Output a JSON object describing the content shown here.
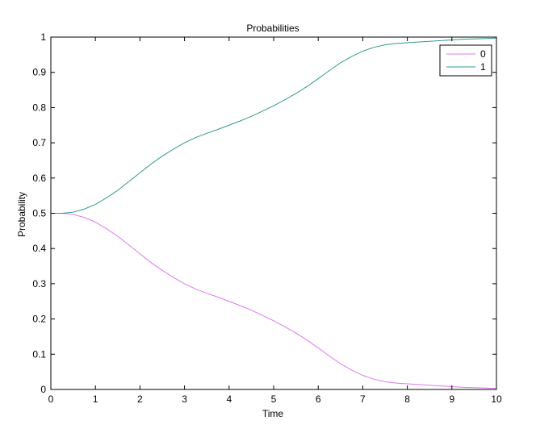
{
  "chart_data": {
    "type": "line",
    "title": "Probabilities",
    "xlabel": "Time",
    "ylabel": "Probability",
    "xlim": [
      0,
      10
    ],
    "ylim": [
      0,
      1
    ],
    "xticks": [
      0,
      1,
      2,
      3,
      4,
      5,
      6,
      7,
      8,
      9,
      10
    ],
    "xtick_labels": [
      "0",
      "1",
      "2",
      "3",
      "4",
      "5",
      "6",
      "7",
      "8",
      "9",
      "10"
    ],
    "yticks": [
      0,
      0.1,
      0.2,
      0.3,
      0.4,
      0.5,
      0.6,
      0.7,
      0.8,
      0.9,
      1
    ],
    "ytick_labels": [
      "0",
      "0.1",
      "0.2",
      "0.3",
      "0.4",
      "0.5",
      "0.6",
      "0.7",
      "0.8",
      "0.9",
      "1"
    ],
    "grid": false,
    "legend_position": "top-right",
    "x": [
      0,
      0.25,
      0.5,
      0.75,
      1.0,
      1.25,
      1.5,
      1.75,
      2.0,
      2.25,
      2.5,
      2.75,
      3.0,
      3.25,
      3.5,
      3.75,
      4.0,
      4.25,
      4.5,
      4.75,
      5.0,
      5.25,
      5.5,
      5.75,
      6.0,
      6.25,
      6.5,
      6.75,
      7.0,
      7.25,
      7.5,
      7.75,
      8.0,
      8.25,
      8.5,
      8.75,
      9.0,
      9.25,
      9.5,
      9.75,
      10.0
    ],
    "series": [
      {
        "name": "0",
        "color": "#dd77ee",
        "values": [
          0.5,
          0.5,
          0.497,
          0.488,
          0.475,
          0.456,
          0.435,
          0.41,
          0.385,
          0.36,
          0.338,
          0.318,
          0.3,
          0.285,
          0.273,
          0.262,
          0.25,
          0.238,
          0.225,
          0.21,
          0.195,
          0.178,
          0.16,
          0.14,
          0.118,
          0.095,
          0.073,
          0.055,
          0.04,
          0.029,
          0.022,
          0.018,
          0.016,
          0.014,
          0.012,
          0.01,
          0.008,
          0.006,
          0.005,
          0.004,
          0.003
        ]
      },
      {
        "name": "1",
        "color": "#339988",
        "values": [
          0.5,
          0.5,
          0.503,
          0.512,
          0.525,
          0.544,
          0.565,
          0.59,
          0.615,
          0.64,
          0.662,
          0.682,
          0.7,
          0.715,
          0.727,
          0.738,
          0.75,
          0.762,
          0.775,
          0.79,
          0.805,
          0.822,
          0.84,
          0.86,
          0.882,
          0.905,
          0.927,
          0.945,
          0.96,
          0.971,
          0.978,
          0.982,
          0.984,
          0.986,
          0.988,
          0.99,
          0.992,
          0.994,
          0.995,
          0.996,
          0.997
        ]
      }
    ]
  }
}
